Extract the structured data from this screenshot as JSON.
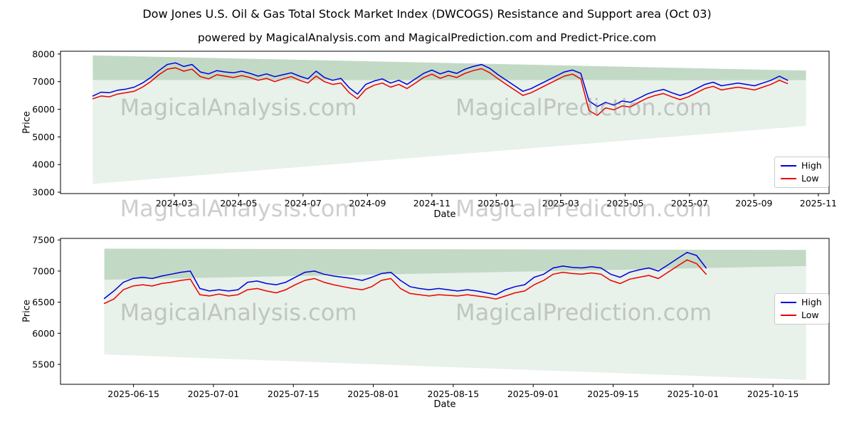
{
  "title": "Dow Jones U.S. Oil & Gas Total Stock Market Index (DWCOGS) Resistance and Support area (Oct 03)",
  "subtitle": "powered by MagicalAnalysis.com and MagicalPrediction.com and Predict-Price.com",
  "watermarks": {
    "analysis": "MagicalAnalysis.com",
    "prediction": "MagicalPrediction.com"
  },
  "legend": {
    "high": "High",
    "low": "Low"
  },
  "colors": {
    "high": "#0000dd",
    "low": "#ee0000",
    "band_dark": "rgba(80,150,90,0.35)",
    "band_light": "rgba(80,150,90,0.13)",
    "spine": "#000000"
  },
  "chart_data": [
    {
      "type": "line",
      "xlabel": "Date",
      "ylabel": "Price",
      "x_tick_labels": [
        "2024-03",
        "2024-05",
        "2024-07",
        "2024-09",
        "2024-11",
        "2025-01",
        "2025-03",
        "2025-05",
        "2025-07",
        "2025-09",
        "2025-11"
      ],
      "y_ticks": [
        3000,
        4000,
        5000,
        6000,
        7000,
        8000
      ],
      "ylim": [
        2950,
        8100
      ],
      "legend_position": "lower right",
      "grid": false,
      "series": [
        {
          "name": "High",
          "color": "#0000dd",
          "values": [
            6480,
            6620,
            6600,
            6690,
            6730,
            6800,
            6950,
            7150,
            7400,
            7620,
            7680,
            7550,
            7620,
            7350,
            7280,
            7400,
            7350,
            7320,
            7380,
            7300,
            7200,
            7280,
            7180,
            7250,
            7320,
            7200,
            7100,
            7380,
            7150,
            7050,
            7120,
            6780,
            6550,
            6900,
            7020,
            7100,
            6950,
            7050,
            6900,
            7100,
            7300,
            7420,
            7280,
            7380,
            7300,
            7450,
            7550,
            7620,
            7480,
            7250,
            7050,
            6850,
            6650,
            6750,
            6900,
            7050,
            7200,
            7350,
            7420,
            7300,
            6300,
            6100,
            6250,
            6150,
            6300,
            6250,
            6400,
            6550,
            6650,
            6720,
            6600,
            6500,
            6600,
            6750,
            6900,
            6980,
            6850,
            6900,
            6950,
            6900,
            6850,
            6950,
            7050,
            7200,
            7050
          ]
        },
        {
          "name": "Low",
          "color": "#ee0000",
          "values": [
            6380,
            6480,
            6450,
            6550,
            6600,
            6650,
            6800,
            7000,
            7250,
            7450,
            7500,
            7380,
            7450,
            7180,
            7100,
            7250,
            7200,
            7150,
            7220,
            7150,
            7050,
            7120,
            7000,
            7100,
            7180,
            7050,
            6950,
            7200,
            7000,
            6900,
            6950,
            6600,
            6380,
            6720,
            6870,
            6950,
            6800,
            6900,
            6750,
            6950,
            7150,
            7270,
            7120,
            7230,
            7150,
            7300,
            7400,
            7470,
            7320,
            7100,
            6900,
            6700,
            6500,
            6600,
            6750,
            6900,
            7050,
            7200,
            7270,
            7100,
            5950,
            5780,
            6050,
            5980,
            6120,
            6080,
            6250,
            6400,
            6500,
            6570,
            6450,
            6350,
            6450,
            6600,
            6750,
            6830,
            6700,
            6750,
            6800,
            6750,
            6700,
            6800,
            6900,
            7050,
            6930
          ]
        }
      ],
      "bands": {
        "resistance": {
          "top": [
            7950,
            7400
          ],
          "bottom": [
            7060,
            7050
          ]
        },
        "support": {
          "top": [
            7060,
            7050
          ],
          "bottom": [
            3300,
            5400
          ]
        }
      }
    },
    {
      "type": "line",
      "xlabel": "Date",
      "ylabel": "Price",
      "x_tick_labels": [
        "2025-06-15",
        "2025-07-01",
        "2025-07-15",
        "2025-08-01",
        "2025-08-15",
        "2025-09-01",
        "2025-09-15",
        "2025-10-01",
        "2025-10-15"
      ],
      "y_ticks": [
        5500,
        6000,
        6500,
        7000,
        7500
      ],
      "ylim": [
        5180,
        7525
      ],
      "legend_position": "center right",
      "grid": false,
      "series": [
        {
          "name": "High",
          "color": "#0000dd",
          "values": [
            6560,
            6680,
            6820,
            6880,
            6900,
            6880,
            6920,
            6950,
            6980,
            7000,
            6720,
            6680,
            6700,
            6680,
            6700,
            6820,
            6840,
            6800,
            6780,
            6820,
            6900,
            6980,
            7000,
            6950,
            6920,
            6900,
            6880,
            6850,
            6900,
            6960,
            6980,
            6850,
            6750,
            6720,
            6700,
            6720,
            6700,
            6680,
            6700,
            6680,
            6650,
            6620,
            6700,
            6750,
            6780,
            6900,
            6950,
            7050,
            7080,
            7060,
            7050,
            7070,
            7050,
            6950,
            6900,
            6980,
            7020,
            7050,
            7000,
            7100,
            7200,
            7300,
            7250,
            7050
          ]
        },
        {
          "name": "Low",
          "color": "#ee0000",
          "values": [
            6480,
            6550,
            6700,
            6760,
            6780,
            6760,
            6800,
            6820,
            6850,
            6870,
            6620,
            6600,
            6630,
            6600,
            6620,
            6700,
            6720,
            6680,
            6650,
            6700,
            6780,
            6850,
            6880,
            6820,
            6780,
            6750,
            6720,
            6700,
            6750,
            6850,
            6880,
            6720,
            6640,
            6620,
            6600,
            6620,
            6610,
            6600,
            6620,
            6600,
            6580,
            6550,
            6600,
            6650,
            6680,
            6780,
            6850,
            6950,
            6980,
            6960,
            6950,
            6970,
            6950,
            6850,
            6800,
            6870,
            6900,
            6930,
            6880,
            6980,
            7080,
            7180,
            7120,
            6950
          ]
        }
      ],
      "bands": {
        "resistance": {
          "top": [
            7360,
            7340
          ],
          "bottom": [
            6860,
            7080
          ]
        },
        "support": {
          "top": [
            6860,
            7080
          ],
          "bottom": [
            5660,
            5250
          ]
        }
      }
    }
  ]
}
